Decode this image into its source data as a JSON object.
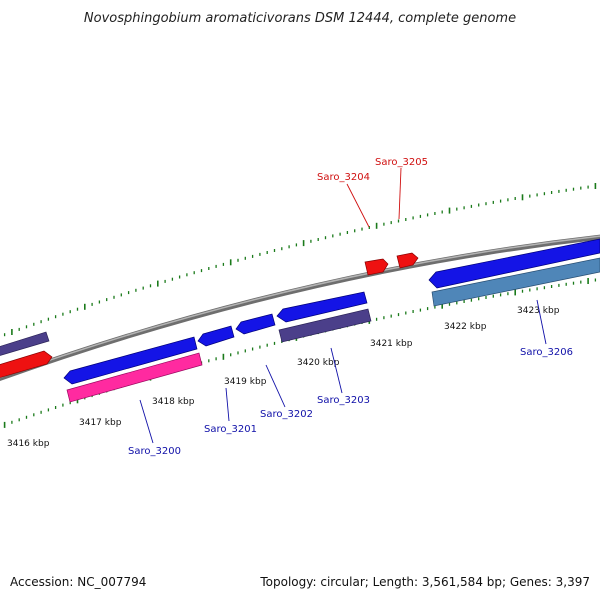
{
  "title": "Novosphingobium aromaticivorans DSM 12444, complete genome",
  "footer": {
    "accession": "Accession: NC_007794",
    "summary": "Topology: circular; Length: 3,561,584 bp; Genes: 3,397"
  },
  "colors": {
    "backbone": "#8a8a8a",
    "tick": "#1a7a1a",
    "blue_gene": "#1414e6",
    "purple_gene": "#4b3f8a",
    "red_gene": "#ee1111",
    "pink_gene": "#ff2aa0",
    "steel_gene": "#4f86b8",
    "label_blue": "#1010a8",
    "label_red": "#d01010"
  },
  "kbp_labels": [
    "3416 kbp",
    "3417 kbp",
    "3418 kbp",
    "3419 kbp",
    "3420 kbp",
    "3421 kbp",
    "3422 kbp",
    "3423 kbp"
  ],
  "gene_labels": [
    {
      "text": "Saro_3200",
      "color": "blue"
    },
    {
      "text": "Saro_3201",
      "color": "blue"
    },
    {
      "text": "Saro_3202",
      "color": "blue"
    },
    {
      "text": "Saro_3203",
      "color": "blue"
    },
    {
      "text": "Saro_3204",
      "color": "red"
    },
    {
      "text": "Saro_3205",
      "color": "red"
    },
    {
      "text": "Saro_3206",
      "color": "blue"
    }
  ],
  "genes": [
    {
      "name": "offscreen-left-purple",
      "strand": "forward",
      "color": "purple_gene"
    },
    {
      "name": "offscreen-left-red",
      "strand": "forward",
      "color": "red_gene"
    },
    {
      "name": "Saro_3200-forward",
      "strand": "forward",
      "color": "blue_gene"
    },
    {
      "name": "Saro_3200",
      "strand": "reverse",
      "color": "pink_gene"
    },
    {
      "name": "Saro_3201",
      "strand": "forward",
      "color": "blue_gene"
    },
    {
      "name": "Saro_3202",
      "strand": "forward",
      "color": "blue_gene"
    },
    {
      "name": "Saro_3203-forward",
      "strand": "forward",
      "color": "blue_gene"
    },
    {
      "name": "Saro_3203",
      "strand": "reverse",
      "color": "purple_gene"
    },
    {
      "name": "Saro_3204",
      "strand": "forward",
      "color": "red_gene"
    },
    {
      "name": "Saro_3205",
      "strand": "forward",
      "color": "red_gene"
    },
    {
      "name": "Saro_3206-forward",
      "strand": "forward",
      "color": "blue_gene"
    },
    {
      "name": "Saro_3206",
      "strand": "reverse",
      "color": "steel_gene"
    }
  ]
}
